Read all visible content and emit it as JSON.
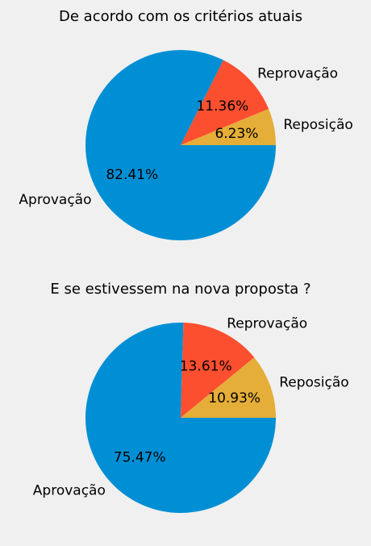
{
  "chart_data": [
    {
      "type": "pie",
      "title": "De acordo com os critérios atuais",
      "categories": [
        "Aprovação",
        "Reprovação",
        "Reposição"
      ],
      "values": [
        82.41,
        11.36,
        6.23
      ],
      "value_labels": [
        "82.41%",
        "11.36%",
        "6.23%"
      ],
      "colors": [
        "#008fd5",
        "#fc4f30",
        "#e5ae38"
      ],
      "start_angle_deg": 0,
      "direction": "clockwise",
      "legend": false
    },
    {
      "type": "pie",
      "title": "E se estivessem na nova proposta ?",
      "categories": [
        "Aprovação",
        "Reprovação",
        "Reposição"
      ],
      "values": [
        75.47,
        13.61,
        10.93
      ],
      "value_labels": [
        "75.47%",
        "13.61%",
        "10.93%"
      ],
      "colors": [
        "#008fd5",
        "#fc4f30",
        "#e5ae38"
      ],
      "start_angle_deg": 0,
      "direction": "clockwise",
      "legend": false
    }
  ]
}
